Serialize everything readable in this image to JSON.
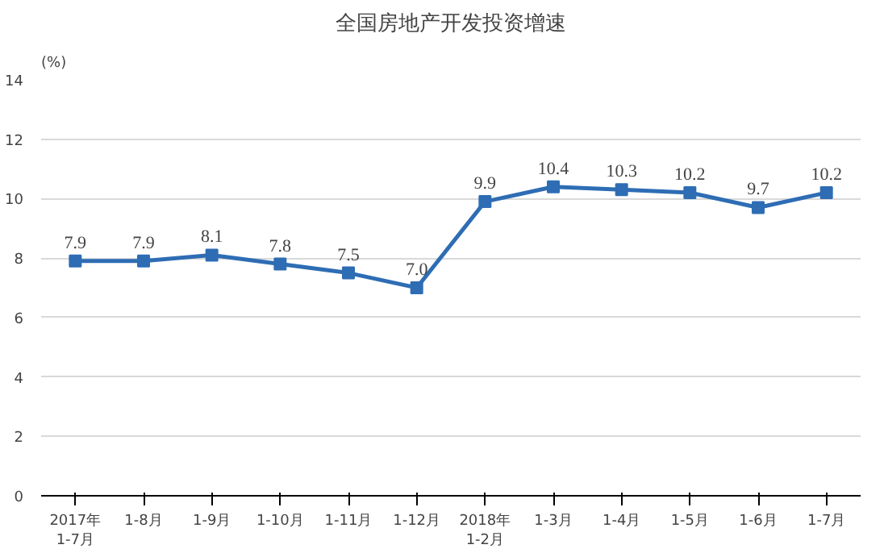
{
  "chart_data": {
    "type": "line",
    "title": "全国房地产开发投资增速",
    "ylabel": "(%)",
    "categories": [
      "2017年\n1-7月",
      "1-8月",
      "1-9月",
      "1-10月",
      "1-11月",
      "1-12月",
      "2018年\n1-2月",
      "1-3月",
      "1-4月",
      "1-5月",
      "1-6月",
      "1-7月"
    ],
    "series": [
      {
        "color": "#2e6db4",
        "values": [
          7.9,
          7.9,
          8.1,
          7.8,
          7.5,
          7.0,
          9.9,
          10.4,
          10.3,
          10.2,
          9.7,
          10.2
        ],
        "value_labels": [
          "7.9",
          "7.9",
          "8.1",
          "7.8",
          "7.5",
          "7.0",
          "9.9",
          "10.4",
          "10.3",
          "10.2",
          "9.7",
          "10.2"
        ]
      }
    ],
    "ylim": [
      0,
      14
    ],
    "yticks": [
      0,
      2,
      4,
      6,
      8,
      10,
      12,
      14
    ],
    "grid": "y",
    "marker": "square",
    "line_style": "solid"
  }
}
